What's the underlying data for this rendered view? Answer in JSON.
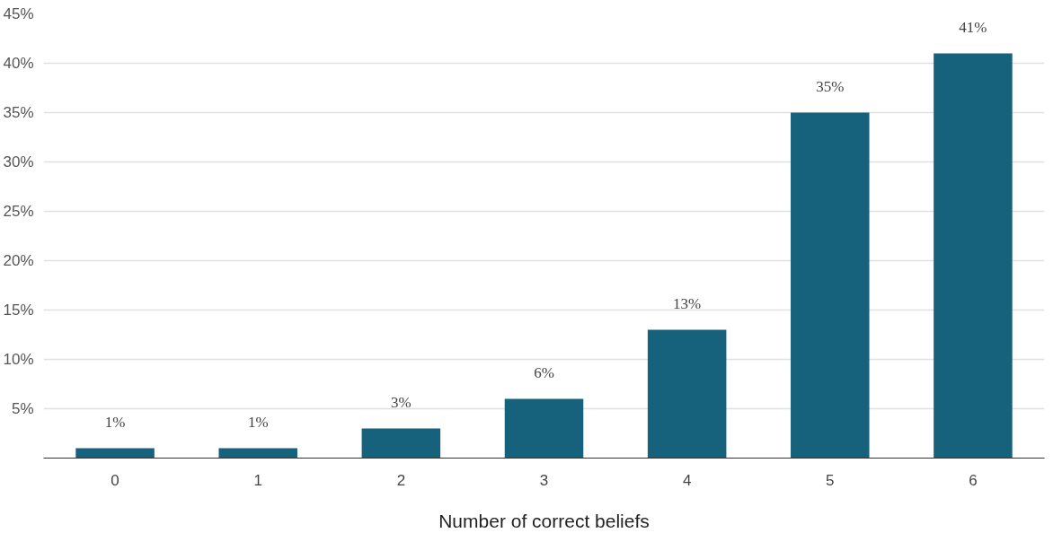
{
  "chart_data": {
    "type": "bar",
    "xlabel": "Number of correct beliefs",
    "categories": [
      "0",
      "1",
      "2",
      "3",
      "4",
      "5",
      "6"
    ],
    "values": [
      1,
      1,
      3,
      6,
      13,
      35,
      41
    ],
    "value_labels": [
      "1%",
      "1%",
      "3%",
      "6%",
      "13%",
      "35%",
      "41%"
    ],
    "color": "#16617b",
    "ylim": [
      0,
      45
    ],
    "yticks": [
      {
        "value": 5,
        "label": "5%"
      },
      {
        "value": 10,
        "label": "10%"
      },
      {
        "value": 15,
        "label": "15%"
      },
      {
        "value": 20,
        "label": "20%"
      },
      {
        "value": 25,
        "label": "25%"
      },
      {
        "value": 30,
        "label": "30%"
      },
      {
        "value": 35,
        "label": "35%"
      },
      {
        "value": 40,
        "label": "40%"
      },
      {
        "value": 45,
        "label": "45%"
      }
    ],
    "grid": "y"
  }
}
